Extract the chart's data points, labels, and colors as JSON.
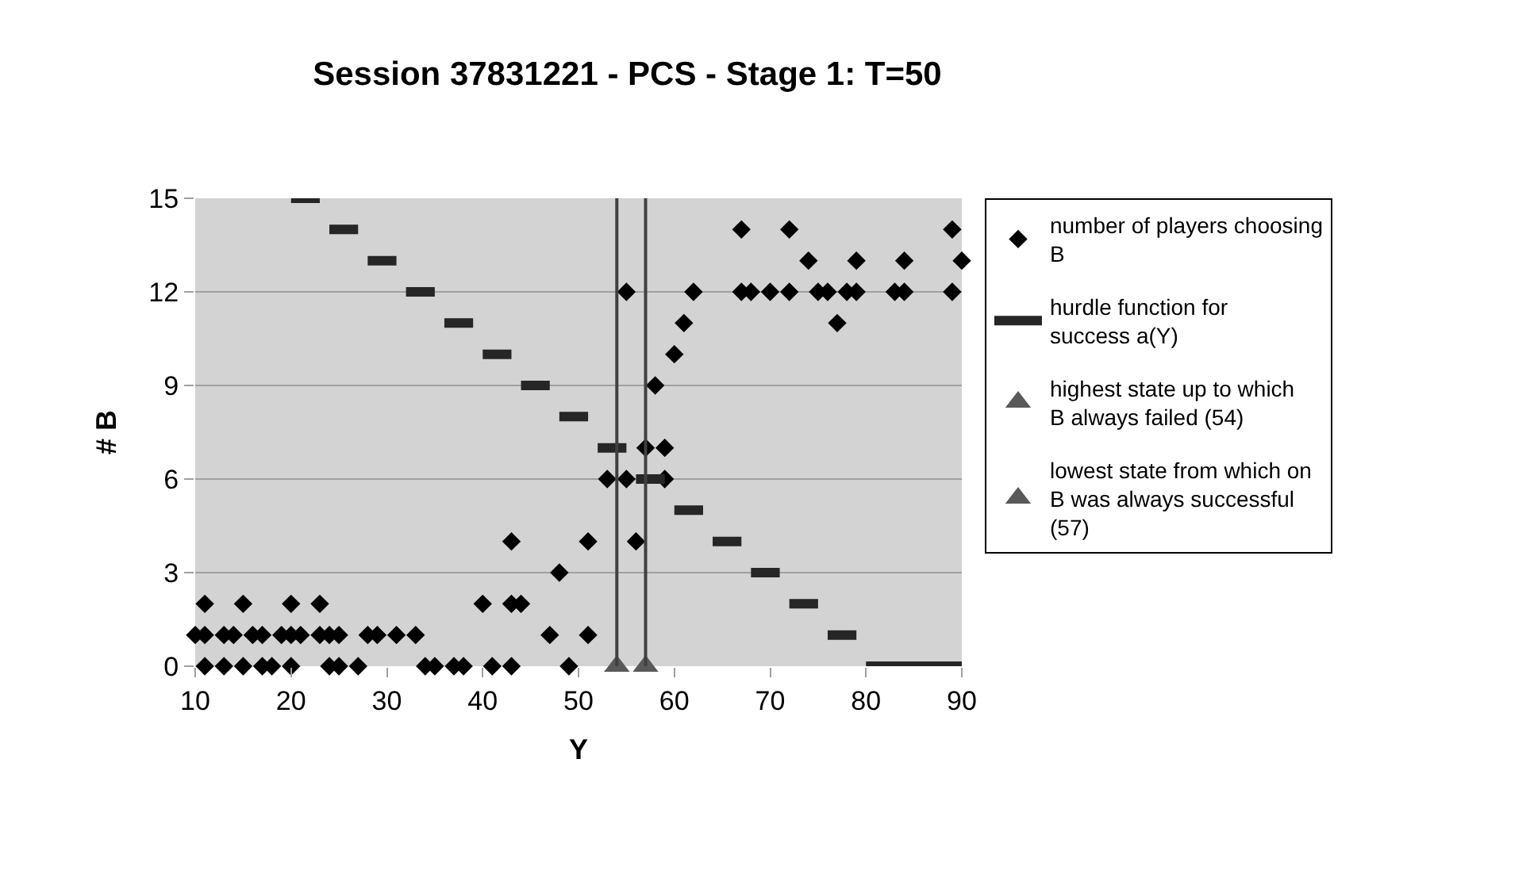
{
  "chart_data": {
    "type": "scatter",
    "title": "Session 37831221 - PCS - Stage 1: T=50",
    "xlabel": "Y",
    "ylabel": "# B",
    "xlim": [
      10,
      90
    ],
    "xticks": [
      10,
      20,
      30,
      40,
      50,
      60,
      70,
      80,
      90
    ],
    "ylim": [
      0,
      15
    ],
    "yticks": [
      0,
      3,
      6,
      9,
      12,
      15
    ],
    "grid": "y",
    "legend": "right",
    "series": [
      {
        "name": "number of players choosing B",
        "type": "scatter",
        "marker": "diamond",
        "color": "#000000",
        "x": [
          10,
          11,
          11,
          11,
          13,
          13,
          14,
          15,
          15,
          16,
          17,
          17,
          18,
          19,
          20,
          20,
          20,
          21,
          23,
          23,
          24,
          24,
          25,
          25,
          27,
          28,
          29,
          31,
          33,
          34,
          35,
          37,
          38,
          40,
          41,
          43,
          43,
          43,
          44,
          47,
          48,
          49,
          51,
          51,
          53,
          55,
          55,
          56,
          57,
          58,
          59,
          59,
          60,
          61,
          62,
          67,
          67,
          68,
          70,
          72,
          72,
          74,
          75,
          76,
          77,
          78,
          79,
          79,
          83,
          84,
          84,
          89,
          89,
          90
        ],
        "values": [
          1,
          0,
          1,
          2,
          0,
          1,
          1,
          0,
          2,
          1,
          0,
          1,
          0,
          1,
          0,
          1,
          2,
          1,
          1,
          2,
          0,
          1,
          0,
          1,
          0,
          1,
          1,
          1,
          1,
          0,
          0,
          0,
          0,
          2,
          0,
          0,
          2,
          4,
          2,
          1,
          3,
          0,
          1,
          4,
          6,
          6,
          12,
          4,
          7,
          9,
          6,
          7,
          10,
          11,
          12,
          12,
          14,
          12,
          12,
          12,
          14,
          13,
          12,
          12,
          11,
          12,
          12,
          13,
          12,
          12,
          13,
          12,
          14,
          13
        ]
      },
      {
        "name": "hurdle function for success a(Y)",
        "type": "line",
        "marker": "none",
        "color": "#262626",
        "x": [
          20,
          21,
          22,
          23,
          24,
          25,
          26,
          27,
          28,
          29,
          30,
          31,
          32,
          33,
          34,
          35,
          36,
          37,
          38,
          39,
          40,
          41,
          42,
          43,
          44,
          45,
          46,
          47,
          48,
          49,
          50,
          51,
          52,
          53,
          54,
          55,
          56,
          57,
          58,
          59,
          60,
          61,
          62,
          63,
          64,
          65,
          66,
          67,
          68,
          69,
          70,
          71,
          72,
          73,
          74,
          75,
          76,
          77,
          78,
          79,
          80,
          81,
          82,
          83,
          84,
          85,
          86,
          87,
          88,
          89,
          90
        ],
        "values": [
          15,
          15,
          15,
          15,
          14,
          14,
          14,
          14,
          13,
          13,
          13,
          13,
          12,
          12,
          12,
          12,
          11,
          11,
          11,
          11,
          10,
          10,
          10,
          10,
          9,
          9,
          9,
          9,
          8,
          8,
          8,
          8,
          7,
          7,
          7,
          7,
          6,
          6,
          6,
          6,
          5,
          5,
          5,
          5,
          4,
          4,
          4,
          4,
          3,
          3,
          3,
          3,
          2,
          2,
          2,
          2,
          1,
          1,
          1,
          1,
          0,
          0,
          0,
          0,
          0,
          0,
          0,
          0,
          0,
          0,
          0
        ]
      },
      {
        "name": "highest state up to which B always failed (54)",
        "type": "scatter",
        "marker": "triangle",
        "color": "#595959",
        "x": [
          54
        ],
        "values": [
          0
        ]
      },
      {
        "name": "lowest state from which on B was always successful (57)",
        "type": "scatter",
        "marker": "triangle",
        "color": "#595959",
        "x": [
          57
        ],
        "values": [
          0
        ]
      }
    ],
    "ref_lines": [
      {
        "axis": "x",
        "value": 54,
        "color": "#404040"
      },
      {
        "axis": "x",
        "value": 57,
        "color": "#404040"
      }
    ]
  }
}
